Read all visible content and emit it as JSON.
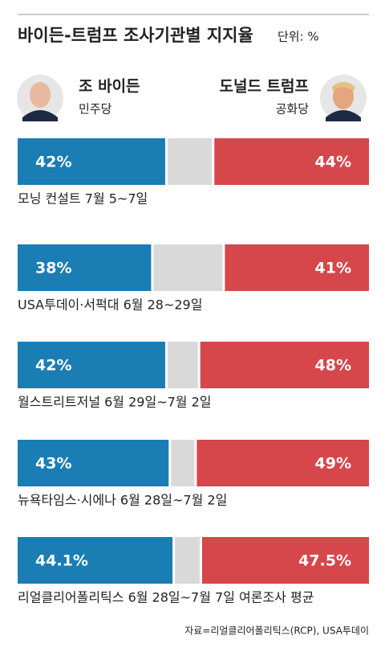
{
  "chart_data": {
    "type": "bar",
    "stacked_mode": "diverging",
    "title": "바이든-트럼프 조사기관별 지지율",
    "subtitle": "단위: %",
    "categories": [
      "모닝 컨설트 7월 5~7일",
      "USA투데이·서퍽대 6월 28~29일",
      "월스트리트저널 6월 29일~7월 2일",
      "뉴욕타임스·시에나 6월 28일~7월 2일",
      "리얼클리어폴리틱스 6월 28일~7월 7일 여론조사 평균"
    ],
    "series": [
      {
        "name": "조 바이든",
        "party": "민주당",
        "color": "#1a7db4",
        "values": [
          42,
          38,
          42,
          43,
          44.1
        ],
        "value_labels": [
          "42%",
          "38%",
          "42%",
          "43%",
          "44.1%"
        ]
      },
      {
        "name": "도널드 트럼프",
        "party": "공화당",
        "color": "#d5474b",
        "values": [
          44,
          41,
          48,
          49,
          47.5
        ],
        "value_labels": [
          "44%",
          "41%",
          "48%",
          "49%",
          "47.5%"
        ]
      }
    ],
    "xlim": [
      0,
      100
    ],
    "source": "자료=리얼클리어폴리틱스(RCP), USA투데이"
  }
}
